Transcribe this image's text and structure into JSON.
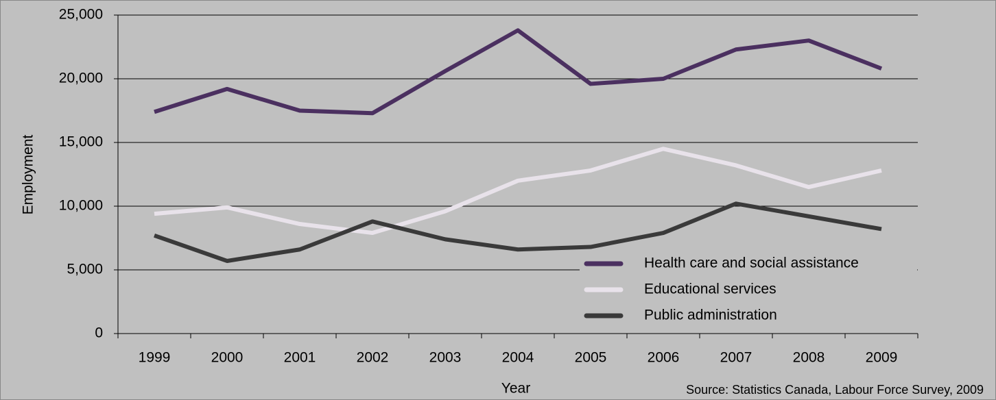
{
  "chart_data": {
    "type": "line",
    "x_label": "Year",
    "y_label": "Employment",
    "source": "Source: Statistics Canada, Labour Force Survey, 2009",
    "categories": [
      "1999",
      "2000",
      "2001",
      "2002",
      "2003",
      "2004",
      "2005",
      "2006",
      "2007",
      "2008",
      "2009"
    ],
    "series": [
      {
        "name": "Health care and social assistance",
        "color": "#4b3060",
        "values": [
          17400,
          19200,
          17500,
          17300,
          20600,
          23800,
          19600,
          20000,
          22300,
          23000,
          20800
        ]
      },
      {
        "name": "Educational services",
        "color": "#e8e2ea",
        "values": [
          9400,
          9900,
          8600,
          7900,
          9600,
          12000,
          12800,
          14500,
          13200,
          11500,
          12800
        ]
      },
      {
        "name": "Public administration",
        "color": "#3a3a3a",
        "values": [
          7700,
          5700,
          6600,
          8800,
          7400,
          6600,
          6800,
          7900,
          10200,
          9200,
          8200
        ]
      }
    ],
    "ylim": [
      0,
      25000
    ],
    "yticks": [
      0,
      {
        "value": 5000,
        "label": "5,000"
      },
      {
        "value": 10000,
        "label": "10,000"
      },
      {
        "value": 15000,
        "label": "15,000"
      },
      {
        "value": 20000,
        "label": "20,000"
      },
      {
        "value": 25000,
        "label": "25,000"
      }
    ],
    "grid": true,
    "legend": "lower right"
  }
}
